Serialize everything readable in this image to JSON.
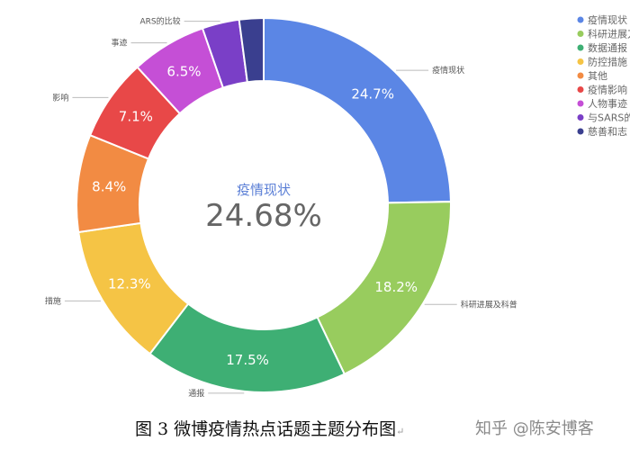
{
  "chart_data": {
    "type": "pie",
    "donut": true,
    "center": {
      "name": "疫情现状",
      "value": "24.68%"
    },
    "slices": [
      {
        "legend": "疫情现状",
        "outer_label": "疫情现状",
        "value": 24.7,
        "label": "24.7%",
        "color": "#5b86e5"
      },
      {
        "legend": "科研进展刀",
        "outer_label": "科研进展及科普",
        "value": 18.2,
        "label": "18.2%",
        "color": "#98cc5e"
      },
      {
        "legend": "数据通报",
        "outer_label": "通报",
        "value": 17.5,
        "label": "17.5%",
        "color": "#3eaf74"
      },
      {
        "legend": "防控措施",
        "outer_label": "措施",
        "value": 12.3,
        "label": "12.3%",
        "color": "#f5c445"
      },
      {
        "legend": "其他",
        "outer_label": "",
        "value": 8.4,
        "label": "8.4%",
        "color": "#f28b43"
      },
      {
        "legend": "疫情影响",
        "outer_label": "影响",
        "value": 7.1,
        "label": "7.1%",
        "color": "#e84848"
      },
      {
        "legend": "人物事迹",
        "outer_label": "事迹",
        "value": 6.5,
        "label": "6.5%",
        "color": "#c54fd6"
      },
      {
        "legend": "与SARS的",
        "outer_label": "ARS的比较",
        "value": 3.2,
        "label": "",
        "color": "#7a3fc7"
      },
      {
        "legend": "慈善和志",
        "outer_label": "",
        "value": 2.1,
        "label": "",
        "color": "#3a3f8f"
      }
    ]
  },
  "caption": {
    "text": "图 3  微博疫情热点话题主题分布图",
    "mark": "↵"
  },
  "watermark": "知乎 @陈安博客"
}
